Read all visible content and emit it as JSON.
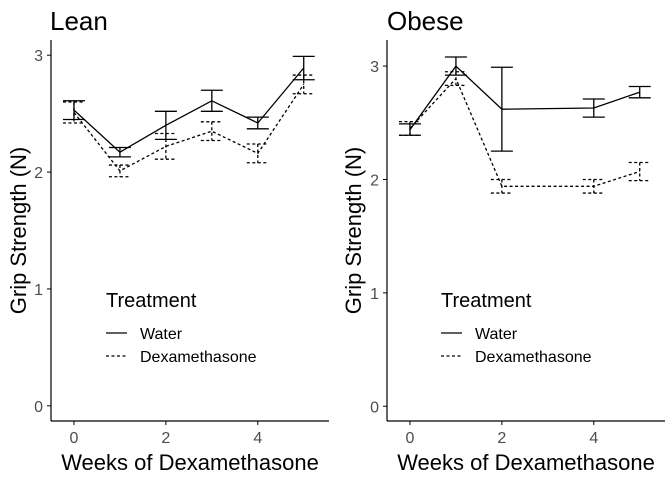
{
  "chart_data": [
    {
      "type": "line",
      "title": "Lean",
      "xlabel": "Weeks of Dexamethasone",
      "ylabel": "Grip Strength (N)",
      "xlim": [
        -0.5,
        5.55
      ],
      "ylim": [
        -0.13,
        3.13
      ],
      "xticks": [
        0,
        2,
        4
      ],
      "yticks": [
        0,
        1,
        2,
        3
      ],
      "grid": false,
      "legend": {
        "title": "Treatment",
        "position": "bottom-center"
      },
      "series": [
        {
          "name": "Water",
          "linestyle": "solid",
          "x": [
            0,
            1,
            2,
            3,
            4,
            5
          ],
          "y": [
            2.53,
            2.17,
            2.4,
            2.61,
            2.42,
            2.89
          ],
          "err": [
            0.08,
            0.04,
            0.12,
            0.09,
            0.05,
            0.1
          ]
        },
        {
          "name": "Dexamethasone",
          "linestyle": "dashed",
          "x": [
            0,
            1,
            2,
            3,
            4,
            5
          ],
          "y": [
            2.51,
            2.01,
            2.22,
            2.35,
            2.16,
            2.75
          ],
          "err": [
            0.09,
            0.05,
            0.11,
            0.08,
            0.08,
            0.08
          ]
        }
      ]
    },
    {
      "type": "line",
      "title": "Obese",
      "xlabel": "Weeks of Dexamethasone",
      "ylabel": "Grip Strength (N)",
      "xlim": [
        -0.5,
        5.55
      ],
      "ylim": [
        -0.13,
        3.23
      ],
      "xticks": [
        0,
        2,
        4
      ],
      "yticks": [
        0,
        1,
        2,
        3
      ],
      "grid": false,
      "legend": {
        "title": "Treatment",
        "position": "bottom-center"
      },
      "series": [
        {
          "name": "Water",
          "linestyle": "solid",
          "x": [
            0,
            1,
            2,
            4,
            5
          ],
          "y": [
            2.44,
            3.0,
            2.62,
            2.63,
            2.77
          ],
          "err": [
            0.05,
            0.08,
            0.37,
            0.08,
            0.05
          ]
        },
        {
          "name": "Dexamethasone",
          "linestyle": "dashed",
          "x": [
            0,
            1,
            2,
            4,
            5
          ],
          "y": [
            2.45,
            2.89,
            1.94,
            1.94,
            2.07
          ],
          "err": [
            0.06,
            0.06,
            0.06,
            0.06,
            0.08
          ]
        }
      ]
    }
  ]
}
